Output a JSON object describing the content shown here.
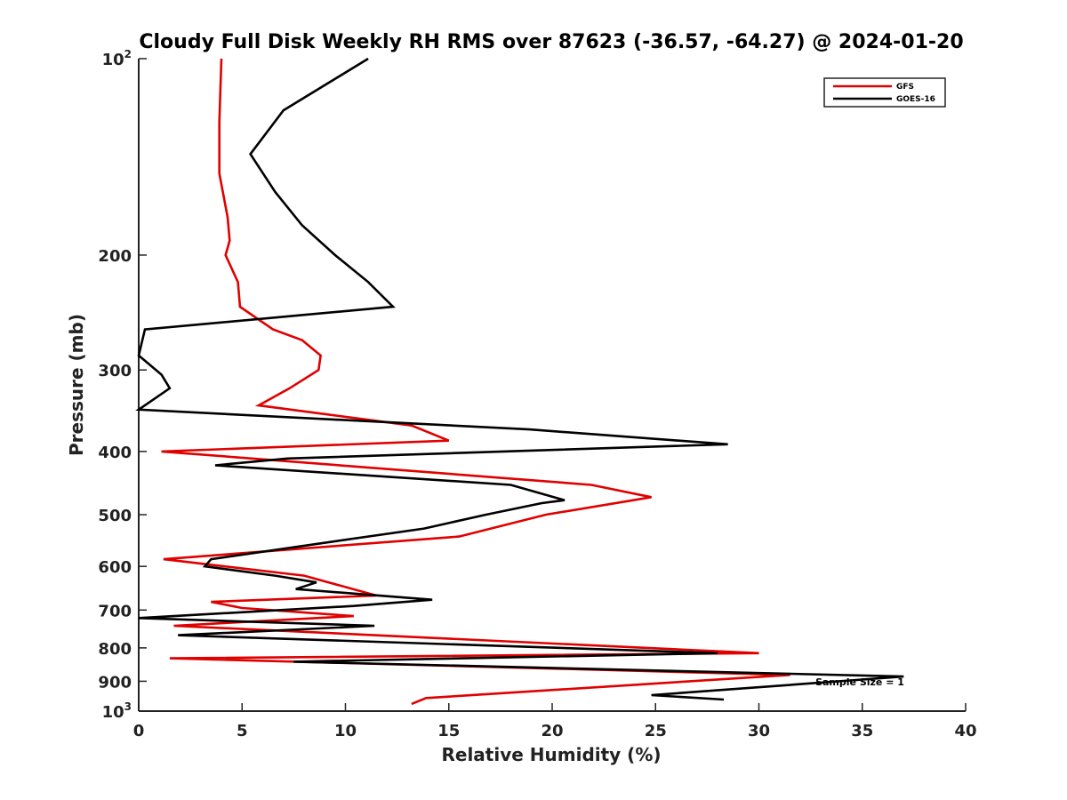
{
  "chart_data": {
    "type": "line",
    "title": "Cloudy Full Disk Weekly RH RMS over 87623 (-36.57, -64.27) @ 2024-01-20",
    "xlabel": "Relative Humidity (%)",
    "ylabel": "Pressure (mb)",
    "xlim": [
      0,
      40
    ],
    "ylim": [
      100,
      1000
    ],
    "y_scale": "log",
    "y_reversed": true,
    "x_ticks": [
      0,
      5,
      10,
      15,
      20,
      25,
      30,
      35,
      40
    ],
    "x_tick_labels": [
      "0",
      "5",
      "10",
      "15",
      "20",
      "25",
      "30",
      "35",
      "40"
    ],
    "y_ticks": [
      {
        "value": 100,
        "base": "10",
        "sup": "2"
      },
      {
        "value": 200,
        "base": "200",
        "sup": ""
      },
      {
        "value": 300,
        "base": "300",
        "sup": ""
      },
      {
        "value": 400,
        "base": "400",
        "sup": ""
      },
      {
        "value": 500,
        "base": "500",
        "sup": ""
      },
      {
        "value": 600,
        "base": "600",
        "sup": ""
      },
      {
        "value": 700,
        "base": "700",
        "sup": ""
      },
      {
        "value": 800,
        "base": "800",
        "sup": ""
      },
      {
        "value": 900,
        "base": "900",
        "sup": ""
      },
      {
        "value": 1000,
        "base": "10",
        "sup": "3"
      }
    ],
    "grid": false,
    "legend_position": "top-right",
    "annotation": "Sample Size = 1",
    "series": [
      {
        "name": "GFS",
        "color": "#e00000",
        "points": [
          [
            4.0,
            100
          ],
          [
            3.9,
            125
          ],
          [
            3.9,
            150
          ],
          [
            4.3,
            175
          ],
          [
            4.4,
            190
          ],
          [
            4.2,
            200
          ],
          [
            4.8,
            220
          ],
          [
            4.9,
            240
          ],
          [
            6.5,
            260
          ],
          [
            7.9,
            270
          ],
          [
            8.8,
            285
          ],
          [
            8.7,
            300
          ],
          [
            7.3,
            320
          ],
          [
            5.8,
            340
          ],
          [
            13.2,
            365
          ],
          [
            15.0,
            385
          ],
          [
            1.1,
            400
          ],
          [
            21.9,
            450
          ],
          [
            24.8,
            470
          ],
          [
            19.7,
            500
          ],
          [
            15.5,
            540
          ],
          [
            1.2,
            585
          ],
          [
            8.0,
            620
          ],
          [
            11.5,
            665
          ],
          [
            3.5,
            680
          ],
          [
            5.0,
            695
          ],
          [
            10.4,
            715
          ],
          [
            1.7,
            740
          ],
          [
            30.0,
            815
          ],
          [
            1.5,
            830
          ],
          [
            31.5,
            880
          ],
          [
            13.9,
            955
          ],
          [
            13.2,
            975
          ]
        ]
      },
      {
        "name": "GOES-16",
        "color": "#000000",
        "points": [
          [
            11.1,
            100
          ],
          [
            7.0,
            120
          ],
          [
            5.4,
            140
          ],
          [
            6.6,
            160
          ],
          [
            7.9,
            180
          ],
          [
            9.5,
            200
          ],
          [
            11.1,
            220
          ],
          [
            12.3,
            240
          ],
          [
            0.3,
            260
          ],
          [
            0.0,
            285
          ],
          [
            1.1,
            305
          ],
          [
            1.5,
            320
          ],
          [
            0.0,
            345
          ],
          [
            18.9,
            370
          ],
          [
            28.5,
            390
          ],
          [
            7.2,
            410
          ],
          [
            3.7,
            420
          ],
          [
            18.0,
            450
          ],
          [
            20.6,
            475
          ],
          [
            19.5,
            480
          ],
          [
            16.8,
            500
          ],
          [
            13.8,
            525
          ],
          [
            8.5,
            555
          ],
          [
            3.5,
            585
          ],
          [
            3.2,
            600
          ],
          [
            6.6,
            620
          ],
          [
            8.6,
            635
          ],
          [
            7.6,
            650
          ],
          [
            14.2,
            675
          ],
          [
            10.4,
            690
          ],
          [
            0.0,
            720
          ],
          [
            11.4,
            740
          ],
          [
            1.9,
            765
          ],
          [
            28.0,
            815
          ],
          [
            7.5,
            840
          ],
          [
            37.0,
            885
          ],
          [
            24.8,
            945
          ],
          [
            28.3,
            960
          ]
        ]
      }
    ]
  }
}
